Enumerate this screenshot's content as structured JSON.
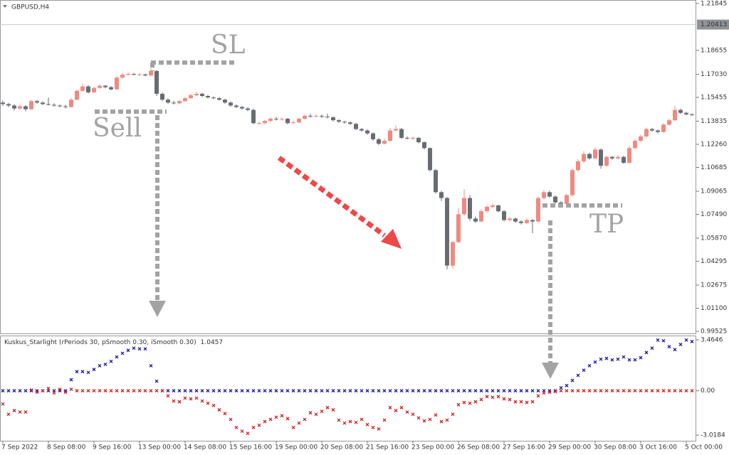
{
  "chart_data": [
    {
      "type": "candlestick",
      "title": "GBPUSD,H4",
      "categories": [
        "7 Sep 2022",
        null,
        null,
        null,
        null,
        null,
        null,
        null,
        "8 Sep 08:00",
        null,
        null,
        null,
        null,
        null,
        null,
        null,
        "9 Sep 16:00",
        null,
        null,
        null,
        null,
        null,
        null,
        null,
        "13 Sep 00:00",
        null,
        null,
        null,
        null,
        null,
        null,
        null,
        "14 Sep 08:00",
        null,
        null,
        null,
        null,
        null,
        null,
        null,
        "15 Sep 16:00",
        null,
        null,
        null,
        null,
        null,
        null,
        null,
        "19 Sep 00:00",
        null,
        null,
        null,
        null,
        null,
        null,
        null,
        "20 Sep 08:00",
        null,
        null,
        null,
        null,
        null,
        null,
        null,
        "21 Sep 16:00",
        null,
        null,
        null,
        null,
        null,
        null,
        null,
        "23 Sep 00:00",
        null,
        null,
        null,
        null,
        null,
        null,
        null,
        "26 Sep 08:00",
        null,
        null,
        null,
        null,
        null,
        null,
        null,
        "27 Sep 16:00",
        null,
        null,
        null,
        null,
        null,
        null,
        null,
        "29 Sep 00:00",
        null,
        null,
        null,
        null,
        null,
        null,
        null,
        "30 Sep 08:00",
        null,
        null,
        null,
        null,
        null,
        null,
        null,
        "3 Oct 16:00",
        null,
        null,
        null,
        null,
        null,
        null,
        null,
        "5 Oct 00:00",
        null
      ],
      "open": [
        1.151,
        1.15,
        1.149,
        1.147,
        1.1485,
        1.1465,
        1.152,
        1.151,
        1.15,
        1.1495,
        1.149,
        1.1485,
        1.148,
        1.153,
        1.159,
        1.162,
        1.158,
        1.161,
        1.1625,
        1.1615,
        1.16,
        1.168,
        1.17,
        1.1705,
        1.17,
        1.1702,
        1.1695,
        1.1725,
        1.157,
        1.153,
        1.151,
        1.1505,
        1.152,
        1.154,
        1.156,
        1.157,
        1.1555,
        1.1545,
        1.154,
        1.153,
        1.151,
        1.149,
        1.148,
        1.147,
        1.146,
        1.137,
        1.137,
        1.1385,
        1.14,
        1.1395,
        1.14,
        1.137,
        1.1375,
        1.14,
        1.142,
        1.1415,
        1.142,
        1.1415,
        1.141,
        1.139,
        1.138,
        1.1375,
        1.1365,
        1.133,
        1.132,
        1.13,
        1.126,
        1.123,
        1.125,
        1.132,
        1.133,
        1.127,
        1.1265,
        1.127,
        1.124,
        1.12,
        1.105,
        1.09,
        1.086,
        1.04,
        1.056,
        1.075,
        1.086,
        1.072,
        1.07,
        1.077,
        1.08,
        1.081,
        1.077,
        1.071,
        1.072,
        1.07,
        1.069,
        1.071,
        1.07,
        1.086,
        1.09,
        1.087,
        1.083,
        1.082,
        1.088,
        1.105,
        1.111,
        1.116,
        1.113,
        1.119,
        1.108,
        1.114,
        1.113,
        1.114,
        1.11,
        1.12,
        1.125,
        1.128,
        1.133,
        1.132,
        1.131,
        1.136,
        1.139,
        1.146,
        1.144,
        1.143
      ],
      "high": [
        1.1525,
        1.1508,
        1.15,
        1.1495,
        1.1492,
        1.153,
        1.1528,
        1.1518,
        1.1545,
        1.1505,
        1.1498,
        1.1495,
        1.154,
        1.16,
        1.164,
        1.163,
        1.1618,
        1.1632,
        1.163,
        1.1622,
        1.169,
        1.1712,
        1.1715,
        1.1712,
        1.171,
        1.1708,
        1.1745,
        1.1732,
        1.1578,
        1.154,
        1.1522,
        1.1528,
        1.1548,
        1.157,
        1.1582,
        1.1576,
        1.1562,
        1.1552,
        1.1548,
        1.1536,
        1.1518,
        1.1498,
        1.1488,
        1.1478,
        1.1468,
        1.138,
        1.1392,
        1.141,
        1.1412,
        1.1408,
        1.1406,
        1.1388,
        1.1408,
        1.1428,
        1.1432,
        1.143,
        1.1428,
        1.1435,
        1.1416,
        1.1398,
        1.1386,
        1.1382,
        1.1372,
        1.1338,
        1.1328,
        1.1308,
        1.127,
        1.1262,
        1.1335,
        1.1355,
        1.1338,
        1.128,
        1.1278,
        1.1276,
        1.1246,
        1.1206,
        1.1058,
        1.091,
        1.0868,
        1.057,
        1.079,
        1.092,
        1.088,
        1.0735,
        1.0785,
        1.0812,
        1.0822,
        1.0815,
        1.0778,
        1.073,
        1.0728,
        1.0708,
        1.0722,
        1.0716,
        1.087,
        1.0915,
        1.091,
        1.0878,
        1.084,
        1.089,
        1.106,
        1.1125,
        1.118,
        1.117,
        1.1205,
        1.1198,
        1.115,
        1.1148,
        1.1152,
        1.1148,
        1.1215,
        1.1262,
        1.1292,
        1.134,
        1.1338,
        1.1328,
        1.137,
        1.14,
        1.1485,
        1.147,
        1.1448,
        1.1438
      ],
      "low": [
        1.1488,
        1.1478,
        1.1455,
        1.146,
        1.145,
        1.146,
        1.1502,
        1.1492,
        1.149,
        1.1482,
        1.1478,
        1.147,
        1.1475,
        1.1525,
        1.1585,
        1.1572,
        1.1575,
        1.1605,
        1.1608,
        1.1594,
        1.1596,
        1.1672,
        1.1694,
        1.1695,
        1.1692,
        1.1688,
        1.169,
        1.1555,
        1.152,
        1.15,
        1.1497,
        1.1498,
        1.1514,
        1.1535,
        1.1554,
        1.1548,
        1.1538,
        1.1532,
        1.1522,
        1.1502,
        1.1482,
        1.1472,
        1.1462,
        1.1452,
        1.1362,
        1.136,
        1.1362,
        1.1378,
        1.1388,
        1.1385,
        1.1362,
        1.1365,
        1.137,
        1.1395,
        1.1408,
        1.141,
        1.1405,
        1.1402,
        1.1382,
        1.1372,
        1.1366,
        1.1358,
        1.1322,
        1.131,
        1.129,
        1.125,
        1.122,
        1.1225,
        1.1245,
        1.1312,
        1.1262,
        1.1258,
        1.1255,
        1.1232,
        1.119,
        1.104,
        1.089,
        1.084,
        1.0375,
        1.038,
        1.0552,
        1.074,
        1.0705,
        1.069,
        1.0695,
        1.076,
        1.0792,
        1.0762,
        1.07,
        1.0702,
        1.069,
        1.068,
        1.0684,
        1.062,
        1.0695,
        1.085,
        1.0862,
        1.0822,
        1.081,
        1.0812,
        1.0872,
        1.104,
        1.11,
        1.112,
        1.1122,
        1.106,
        1.1072,
        1.112,
        1.1122,
        1.1092,
        1.1095,
        1.1192,
        1.1242,
        1.1272,
        1.1312,
        1.13,
        1.1302,
        1.1352,
        1.1382,
        1.1432,
        1.1422,
        1.1418
      ],
      "close": [
        1.15,
        1.149,
        1.147,
        1.1485,
        1.1465,
        1.152,
        1.151,
        1.15,
        1.1495,
        1.149,
        1.1485,
        1.148,
        1.153,
        1.159,
        1.162,
        1.158,
        1.161,
        1.1625,
        1.1615,
        1.16,
        1.168,
        1.17,
        1.1705,
        1.17,
        1.1702,
        1.1695,
        1.1725,
        1.157,
        1.153,
        1.151,
        1.1505,
        1.152,
        1.154,
        1.156,
        1.157,
        1.1555,
        1.1545,
        1.154,
        1.153,
        1.151,
        1.149,
        1.148,
        1.147,
        1.146,
        1.137,
        1.137,
        1.1385,
        1.14,
        1.1395,
        1.14,
        1.137,
        1.1375,
        1.14,
        1.142,
        1.1415,
        1.142,
        1.1415,
        1.141,
        1.139,
        1.138,
        1.1375,
        1.1365,
        1.133,
        1.132,
        1.13,
        1.126,
        1.123,
        1.125,
        1.132,
        1.133,
        1.127,
        1.1265,
        1.127,
        1.124,
        1.12,
        1.105,
        1.09,
        1.086,
        1.04,
        1.056,
        1.075,
        1.086,
        1.072,
        1.07,
        1.077,
        1.08,
        1.081,
        1.077,
        1.071,
        1.072,
        1.07,
        1.069,
        1.071,
        1.07,
        1.086,
        1.09,
        1.087,
        1.083,
        1.082,
        1.088,
        1.105,
        1.111,
        1.116,
        1.113,
        1.119,
        1.108,
        1.114,
        1.113,
        1.114,
        1.11,
        1.12,
        1.125,
        1.128,
        1.133,
        1.132,
        1.131,
        1.136,
        1.139,
        1.146,
        1.144,
        1.143,
        1.1425
      ],
      "up_color": "#ef8a80",
      "down_color": "#686c73",
      "price_line": 1.20413,
      "ylim": [
        0.99525,
        1.21845
      ],
      "yticks": [
        1.21845,
        1.18655,
        {
          "value": 1.1703,
          "label": "1.17030"
        },
        1.15455,
        1.13835,
        {
          "value": 1.1226,
          "label": "1.12260"
        },
        1.10685,
        1.09065,
        {
          "value": 1.0749,
          "label": "1.07490"
        },
        {
          "value": 1.0587,
          "label": "1.05870"
        },
        1.04295,
        1.02675,
        {
          "value": 1.011,
          "label": "1.01100"
        },
        0.99525
      ],
      "annotations": [
        "SL",
        "Sell",
        "TP"
      ]
    },
    {
      "type": "scatter",
      "title": "Kuskus_Starlight (rPeriods 30, pSmooth 0.30, iSmooth 0.30)",
      "current_value": 1.0457,
      "series": [
        {
          "color": "#1a1aa8",
          "values": [
            0,
            0,
            0,
            0,
            0,
            0,
            0,
            0,
            0,
            0,
            0,
            0,
            0.75,
            1.3,
            1.3,
            1.25,
            1.45,
            1.7,
            1.8,
            2.0,
            2.3,
            2.55,
            2.75,
            2.9,
            2.85,
            2.85,
            1.7,
            0.65,
            0,
            0,
            0,
            0,
            0,
            0,
            0,
            0,
            0,
            0,
            0,
            0,
            0,
            0,
            0,
            0,
            0,
            0,
            0,
            0,
            0,
            0,
            0,
            0,
            0,
            0,
            0,
            0,
            0,
            0,
            0,
            0,
            0,
            0,
            0,
            0,
            0,
            0,
            0,
            0,
            0,
            0,
            0,
            0,
            0,
            0,
            0,
            0,
            0,
            0,
            0,
            0,
            0,
            0,
            0,
            0,
            0,
            0,
            0,
            0,
            0,
            0,
            0,
            0,
            0,
            0,
            0,
            0,
            0,
            0,
            0.2,
            0.35,
            0.7,
            1.05,
            1.4,
            1.7,
            1.95,
            2.15,
            2.2,
            2.1,
            2.15,
            2.3,
            2.1,
            2.1,
            2.25,
            2.6,
            2.9,
            3.45,
            3.4,
            3.0,
            2.8,
            3.15,
            3.45,
            3.35
          ]
        },
        {
          "color": "#d42020",
          "values": [
            -0.9,
            -1.6,
            -1.35,
            -1.45,
            -1.45,
            0.05,
            -0.1,
            0,
            0.15,
            -0.15,
            0.1,
            -0.1,
            0.1,
            0,
            0,
            0,
            0,
            0,
            0,
            0,
            0,
            0,
            0,
            0,
            0,
            0,
            0,
            0,
            0,
            -0.35,
            -0.7,
            -0.75,
            -0.5,
            -0.55,
            -0.5,
            -0.7,
            -0.85,
            -1.0,
            -1.3,
            -1.55,
            -1.95,
            -2.5,
            -2.75,
            -2.9,
            -2.5,
            -2.35,
            -2.1,
            -1.95,
            -1.8,
            -1.7,
            -1.9,
            -2.5,
            -2.2,
            -1.95,
            -1.5,
            -1.6,
            -1.4,
            -1.15,
            -1.3,
            -2.0,
            -2.2,
            -2.1,
            -2.15,
            -1.95,
            -2.3,
            -2.5,
            -2.6,
            -2.0,
            -1.15,
            -1.35,
            -1.15,
            -1.45,
            -1.6,
            -1.85,
            -2.05,
            -1.95,
            -1.65,
            -2.1,
            -2.0,
            -1.6,
            -0.95,
            -0.8,
            -0.85,
            -0.75,
            -0.6,
            -0.4,
            -0.45,
            -0.4,
            -0.55,
            -0.6,
            -0.75,
            -0.75,
            -0.8,
            -0.75,
            -0.35,
            -0.15,
            -0.1,
            -0.05,
            0,
            0,
            0,
            0,
            0,
            0,
            0,
            0,
            0,
            0,
            0,
            0,
            0,
            0,
            0,
            0,
            0,
            0,
            0,
            0,
            0,
            0,
            0,
            0
          ]
        }
      ],
      "ylim": [
        -3.0184,
        3.4646
      ],
      "yticks": [
        3.4646,
        {
          "value": 0,
          "label": "0.00"
        },
        -3.0184
      ]
    }
  ]
}
